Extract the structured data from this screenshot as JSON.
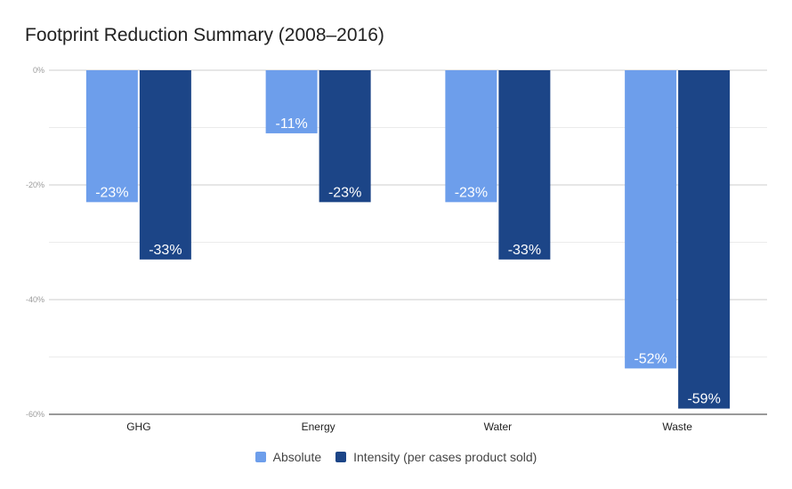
{
  "chart_data": {
    "type": "bar",
    "title": "Footprint Reduction Summary (2008–2016)",
    "categories": [
      "GHG",
      "Energy",
      "Water",
      "Waste"
    ],
    "series": [
      {
        "name": "Absolute",
        "color": "#6d9eeb",
        "values": [
          -23,
          -11,
          -23,
          -52
        ],
        "labels": [
          "-23%",
          "-11%",
          "-23%",
          "-52%"
        ]
      },
      {
        "name": "Intensity (per cases product sold)",
        "color": "#1c4587",
        "values": [
          -33,
          -23,
          -33,
          -59
        ],
        "labels": [
          "-33%",
          "-23%",
          "-33%",
          "-59%"
        ]
      }
    ],
    "ylim": [
      -60,
      0
    ],
    "yticks": [
      {
        "value": 0,
        "label": "0%"
      },
      {
        "value": -20,
        "label": "-20%"
      },
      {
        "value": -40,
        "label": "-40%"
      },
      {
        "value": -60,
        "label": "-60%"
      }
    ],
    "minor_gridlines": [
      -10,
      -30,
      -50
    ],
    "legend_position": "bottom",
    "grid": true,
    "gridline_color": "#cccccc",
    "minor_gridline_color": "#ebebeb"
  }
}
